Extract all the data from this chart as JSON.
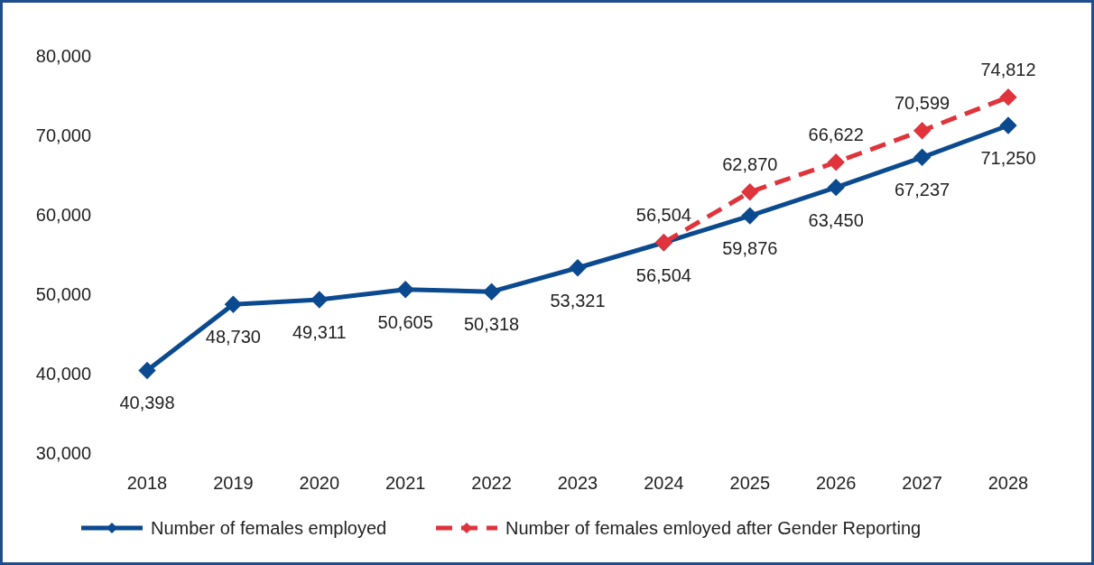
{
  "chart_data": {
    "type": "line",
    "categories": [
      "2018",
      "2019",
      "2020",
      "2021",
      "2022",
      "2023",
      "2024",
      "2025",
      "2026",
      "2027",
      "2028"
    ],
    "series": [
      {
        "name": "Number of females employed",
        "color": "#0b4a8f",
        "line_style": "solid",
        "values": [
          40398,
          48730,
          49311,
          50605,
          50318,
          53321,
          56504,
          59876,
          63450,
          67237,
          71250
        ],
        "value_labels": [
          "40,398",
          "48,730",
          "49,311",
          "50,605",
          "50,318",
          "53,321",
          "56,504",
          "59,876",
          "63,450",
          "67,237",
          "71,250"
        ]
      },
      {
        "name": "Number of females emloyed after Gender Reporting",
        "color": "#e0343c",
        "line_style": "dashed",
        "values": [
          null,
          null,
          null,
          null,
          null,
          null,
          56504,
          62870,
          66622,
          70599,
          74812
        ],
        "value_labels": [
          null,
          null,
          null,
          null,
          null,
          null,
          "56,504",
          "62,870",
          "66,622",
          "70,599",
          "74,812"
        ]
      }
    ],
    "ylim": [
      30000,
      80000
    ],
    "yticks": [
      {
        "value": 30000,
        "label": "30,000"
      },
      {
        "value": 40000,
        "label": "40,000"
      },
      {
        "value": 50000,
        "label": "50,000"
      },
      {
        "value": 60000,
        "label": "60,000"
      },
      {
        "value": 70000,
        "label": "70,000"
      },
      {
        "value": 80000,
        "label": "80,000"
      }
    ],
    "marker": "diamond",
    "legend": "bottom",
    "grid": false
  }
}
